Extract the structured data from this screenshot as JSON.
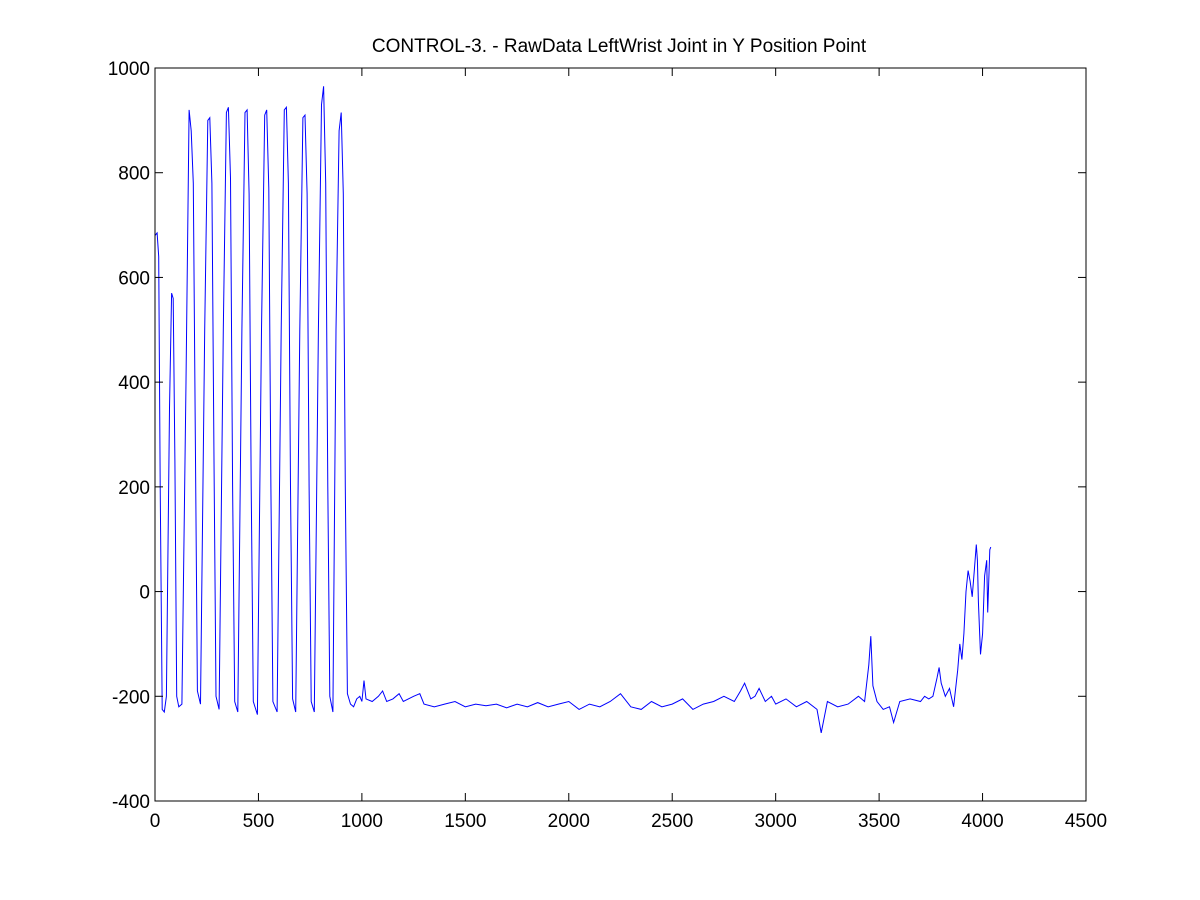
{
  "chart_data": {
    "type": "line",
    "title": "CONTROL-3. - RawData LeftWrist Joint in Y Position Point",
    "xlabel": "",
    "ylabel": "",
    "xlim": [
      0,
      4500
    ],
    "ylim": [
      -400,
      1000
    ],
    "xticks": [
      0,
      500,
      1000,
      1500,
      2000,
      2500,
      3000,
      3500,
      4000,
      4500
    ],
    "yticks": [
      -400,
      -200,
      0,
      200,
      400,
      600,
      800,
      1000
    ],
    "xtick_labels": [
      "0",
      "500",
      "1000",
      "1500",
      "2000",
      "2500",
      "3000",
      "3500",
      "4000",
      "4500"
    ],
    "ytick_labels": [
      "-400",
      "-200",
      "0",
      "200",
      "400",
      "600",
      "800",
      "1000"
    ],
    "grid": false,
    "series_color": "#0000ff",
    "series": [
      {
        "values": [
          [
            0,
            680
          ],
          [
            10,
            685
          ],
          [
            18,
            640
          ],
          [
            25,
            200
          ],
          [
            35,
            -225
          ],
          [
            45,
            -230
          ],
          [
            55,
            -200
          ],
          [
            70,
            350
          ],
          [
            80,
            570
          ],
          [
            88,
            560
          ],
          [
            96,
            250
          ],
          [
            105,
            -200
          ],
          [
            115,
            -220
          ],
          [
            130,
            -215
          ],
          [
            150,
            400
          ],
          [
            165,
            920
          ],
          [
            175,
            880
          ],
          [
            185,
            780
          ],
          [
            195,
            300
          ],
          [
            205,
            -190
          ],
          [
            220,
            -215
          ],
          [
            240,
            500
          ],
          [
            255,
            900
          ],
          [
            265,
            905
          ],
          [
            275,
            780
          ],
          [
            285,
            250
          ],
          [
            295,
            -200
          ],
          [
            310,
            -225
          ],
          [
            330,
            500
          ],
          [
            345,
            915
          ],
          [
            355,
            925
          ],
          [
            365,
            790
          ],
          [
            375,
            200
          ],
          [
            385,
            -210
          ],
          [
            400,
            -230
          ],
          [
            420,
            500
          ],
          [
            435,
            915
          ],
          [
            445,
            920
          ],
          [
            455,
            760
          ],
          [
            465,
            200
          ],
          [
            475,
            -210
          ],
          [
            495,
            -235
          ],
          [
            515,
            500
          ],
          [
            530,
            910
          ],
          [
            540,
            920
          ],
          [
            550,
            770
          ],
          [
            560,
            200
          ],
          [
            570,
            -210
          ],
          [
            590,
            -230
          ],
          [
            610,
            500
          ],
          [
            625,
            920
          ],
          [
            635,
            925
          ],
          [
            645,
            780
          ],
          [
            655,
            200
          ],
          [
            665,
            -205
          ],
          [
            680,
            -230
          ],
          [
            700,
            500
          ],
          [
            715,
            905
          ],
          [
            725,
            910
          ],
          [
            735,
            760
          ],
          [
            745,
            200
          ],
          [
            755,
            -210
          ],
          [
            770,
            -230
          ],
          [
            790,
            500
          ],
          [
            805,
            930
          ],
          [
            815,
            965
          ],
          [
            825,
            780
          ],
          [
            835,
            200
          ],
          [
            845,
            -200
          ],
          [
            860,
            -230
          ],
          [
            875,
            500
          ],
          [
            890,
            880
          ],
          [
            900,
            915
          ],
          [
            910,
            760
          ],
          [
            920,
            200
          ],
          [
            930,
            -195
          ],
          [
            945,
            -215
          ],
          [
            960,
            -220
          ],
          [
            975,
            -205
          ],
          [
            990,
            -200
          ],
          [
            1000,
            -210
          ],
          [
            1010,
            -170
          ],
          [
            1020,
            -205
          ],
          [
            1050,
            -210
          ],
          [
            1080,
            -200
          ],
          [
            1100,
            -190
          ],
          [
            1120,
            -210
          ],
          [
            1150,
            -205
          ],
          [
            1180,
            -195
          ],
          [
            1200,
            -210
          ],
          [
            1250,
            -200
          ],
          [
            1280,
            -195
          ],
          [
            1300,
            -215
          ],
          [
            1350,
            -220
          ],
          [
            1400,
            -215
          ],
          [
            1450,
            -210
          ],
          [
            1500,
            -220
          ],
          [
            1550,
            -215
          ],
          [
            1600,
            -218
          ],
          [
            1650,
            -215
          ],
          [
            1700,
            -222
          ],
          [
            1750,
            -215
          ],
          [
            1800,
            -220
          ],
          [
            1850,
            -212
          ],
          [
            1900,
            -220
          ],
          [
            1950,
            -215
          ],
          [
            2000,
            -210
          ],
          [
            2050,
            -225
          ],
          [
            2100,
            -215
          ],
          [
            2150,
            -220
          ],
          [
            2200,
            -210
          ],
          [
            2250,
            -195
          ],
          [
            2300,
            -220
          ],
          [
            2350,
            -225
          ],
          [
            2400,
            -210
          ],
          [
            2450,
            -220
          ],
          [
            2500,
            -215
          ],
          [
            2550,
            -205
          ],
          [
            2600,
            -225
          ],
          [
            2650,
            -215
          ],
          [
            2700,
            -210
          ],
          [
            2750,
            -200
          ],
          [
            2800,
            -210
          ],
          [
            2830,
            -190
          ],
          [
            2850,
            -175
          ],
          [
            2880,
            -205
          ],
          [
            2900,
            -200
          ],
          [
            2920,
            -185
          ],
          [
            2950,
            -210
          ],
          [
            2980,
            -200
          ],
          [
            3000,
            -215
          ],
          [
            3050,
            -205
          ],
          [
            3100,
            -220
          ],
          [
            3150,
            -210
          ],
          [
            3200,
            -225
          ],
          [
            3220,
            -270
          ],
          [
            3250,
            -210
          ],
          [
            3300,
            -220
          ],
          [
            3350,
            -215
          ],
          [
            3400,
            -200
          ],
          [
            3430,
            -210
          ],
          [
            3450,
            -140
          ],
          [
            3460,
            -85
          ],
          [
            3470,
            -180
          ],
          [
            3490,
            -210
          ],
          [
            3520,
            -225
          ],
          [
            3550,
            -220
          ],
          [
            3570,
            -250
          ],
          [
            3600,
            -210
          ],
          [
            3650,
            -205
          ],
          [
            3700,
            -210
          ],
          [
            3720,
            -200
          ],
          [
            3740,
            -205
          ],
          [
            3760,
            -200
          ],
          [
            3780,
            -165
          ],
          [
            3790,
            -145
          ],
          [
            3800,
            -175
          ],
          [
            3820,
            -200
          ],
          [
            3840,
            -185
          ],
          [
            3860,
            -220
          ],
          [
            3880,
            -150
          ],
          [
            3890,
            -100
          ],
          [
            3900,
            -130
          ],
          [
            3910,
            -80
          ],
          [
            3920,
            0
          ],
          [
            3930,
            40
          ],
          [
            3940,
            20
          ],
          [
            3950,
            -10
          ],
          [
            3960,
            40
          ],
          [
            3970,
            90
          ],
          [
            3975,
            60
          ],
          [
            3980,
            -20
          ],
          [
            3990,
            -120
          ],
          [
            4000,
            -80
          ],
          [
            4010,
            30
          ],
          [
            4020,
            60
          ],
          [
            4025,
            -40
          ],
          [
            4035,
            80
          ],
          [
            4040,
            85
          ]
        ]
      }
    ]
  }
}
